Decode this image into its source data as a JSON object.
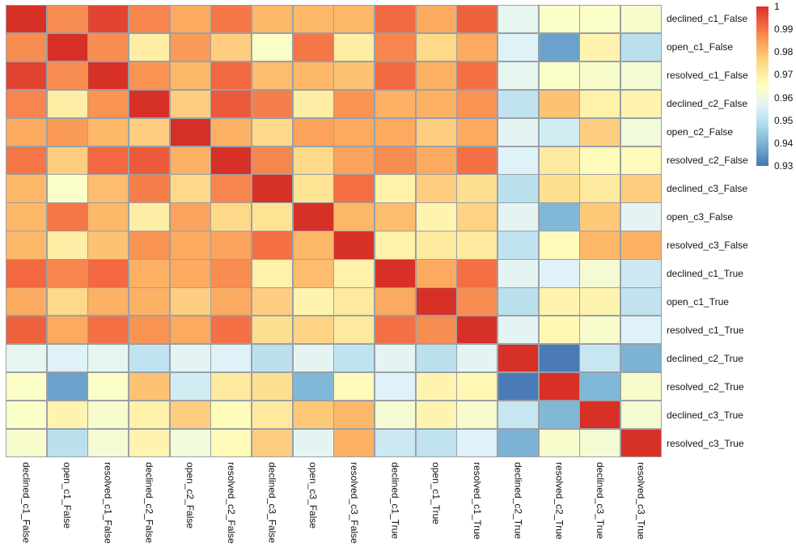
{
  "figure": {
    "background": "#ffffff",
    "gridline_color": "#9aa0a6",
    "label_color": "#141414"
  },
  "chart_data": {
    "type": "heatmap",
    "title": "",
    "xlabel": "",
    "ylabel": "",
    "labels": [
      "declined_c1_False",
      "open_c1_False",
      "resolved_c1_False",
      "declined_c2_False",
      "open_c2_False",
      "resolved_c2_False",
      "declined_c3_False",
      "open_c3_False",
      "resolved_c3_False",
      "declined_c1_True",
      "open_c1_True",
      "resolved_c1_True",
      "declined_c2_True",
      "resolved_c2_True",
      "declined_c3_True",
      "resolved_c3_True"
    ],
    "matrix": [
      [
        1.0,
        0.987,
        0.997,
        0.988,
        0.983,
        0.99,
        0.981,
        0.981,
        0.981,
        0.992,
        0.983,
        0.993,
        0.958,
        0.964,
        0.964,
        0.963
      ],
      [
        0.987,
        1.0,
        0.987,
        0.97,
        0.985,
        0.977,
        0.964,
        0.99,
        0.97,
        0.988,
        0.975,
        0.983,
        0.956,
        0.937,
        0.968,
        0.95
      ],
      [
        0.997,
        0.987,
        1.0,
        0.986,
        0.981,
        0.992,
        0.98,
        0.981,
        0.979,
        0.992,
        0.982,
        0.991,
        0.958,
        0.964,
        0.963,
        0.962
      ],
      [
        0.988,
        0.97,
        0.986,
        1.0,
        0.977,
        0.994,
        0.989,
        0.97,
        0.986,
        0.982,
        0.982,
        0.986,
        0.951,
        0.979,
        0.969,
        0.968
      ],
      [
        0.983,
        0.985,
        0.981,
        0.977,
        1.0,
        0.982,
        0.975,
        0.984,
        0.983,
        0.983,
        0.977,
        0.983,
        0.957,
        0.954,
        0.977,
        0.961
      ],
      [
        0.99,
        0.977,
        0.992,
        0.994,
        0.982,
        1.0,
        0.988,
        0.975,
        0.984,
        0.987,
        0.983,
        0.991,
        0.956,
        0.971,
        0.966,
        0.966
      ],
      [
        0.981,
        0.964,
        0.98,
        0.989,
        0.975,
        0.988,
        1.0,
        0.973,
        0.991,
        0.969,
        0.977,
        0.974,
        0.95,
        0.974,
        0.971,
        0.977
      ],
      [
        0.981,
        0.99,
        0.981,
        0.97,
        0.984,
        0.975,
        0.973,
        1.0,
        0.981,
        0.98,
        0.968,
        0.976,
        0.957,
        0.941,
        0.978,
        0.957
      ],
      [
        0.981,
        0.97,
        0.979,
        0.986,
        0.983,
        0.984,
        0.991,
        0.981,
        1.0,
        0.969,
        0.971,
        0.971,
        0.951,
        0.966,
        0.981,
        0.982
      ],
      [
        0.992,
        0.988,
        0.992,
        0.982,
        0.983,
        0.987,
        0.969,
        0.98,
        0.969,
        1.0,
        0.983,
        0.991,
        0.957,
        0.956,
        0.962,
        0.953
      ],
      [
        0.983,
        0.975,
        0.982,
        0.982,
        0.977,
        0.983,
        0.977,
        0.968,
        0.971,
        0.983,
        1.0,
        0.987,
        0.95,
        0.968,
        0.968,
        0.951
      ],
      [
        0.993,
        0.983,
        0.991,
        0.986,
        0.983,
        0.991,
        0.974,
        0.976,
        0.971,
        0.991,
        0.987,
        1.0,
        0.957,
        0.967,
        0.963,
        0.956
      ],
      [
        0.958,
        0.956,
        0.958,
        0.951,
        0.957,
        0.956,
        0.95,
        0.957,
        0.951,
        0.957,
        0.95,
        0.957,
        1.0,
        0.931,
        0.952,
        0.94
      ],
      [
        0.964,
        0.937,
        0.964,
        0.979,
        0.954,
        0.971,
        0.974,
        0.941,
        0.966,
        0.956,
        0.968,
        0.967,
        0.931,
        1.0,
        0.941,
        0.963
      ],
      [
        0.964,
        0.968,
        0.963,
        0.969,
        0.977,
        0.966,
        0.971,
        0.978,
        0.981,
        0.962,
        0.968,
        0.963,
        0.952,
        0.941,
        1.0,
        0.962
      ],
      [
        0.963,
        0.95,
        0.962,
        0.968,
        0.961,
        0.966,
        0.977,
        0.957,
        0.982,
        0.953,
        0.951,
        0.956,
        0.94,
        0.963,
        0.962,
        1.0
      ]
    ],
    "value_domain": [
      0.93,
      1.0
    ],
    "colormap_name": "RdYlBu_r",
    "colormap_stops": [
      "#4575b4",
      "#74add1",
      "#abd9e9",
      "#e0f3f8",
      "#ffffbf",
      "#fee090",
      "#fdae61",
      "#f46d43",
      "#d73027"
    ],
    "colorbar": {
      "position": "top-right",
      "tick_labels": [
        "1",
        "0.99",
        "0.98",
        "0.97",
        "0.96",
        "0.95",
        "0.94",
        "0.93"
      ],
      "tick_values": [
        1.0,
        0.99,
        0.98,
        0.97,
        0.96,
        0.95,
        0.94,
        0.93
      ]
    },
    "layout": {
      "legend": "none",
      "grid": "cell-borders",
      "x_tick_rotation": "vertical"
    }
  }
}
